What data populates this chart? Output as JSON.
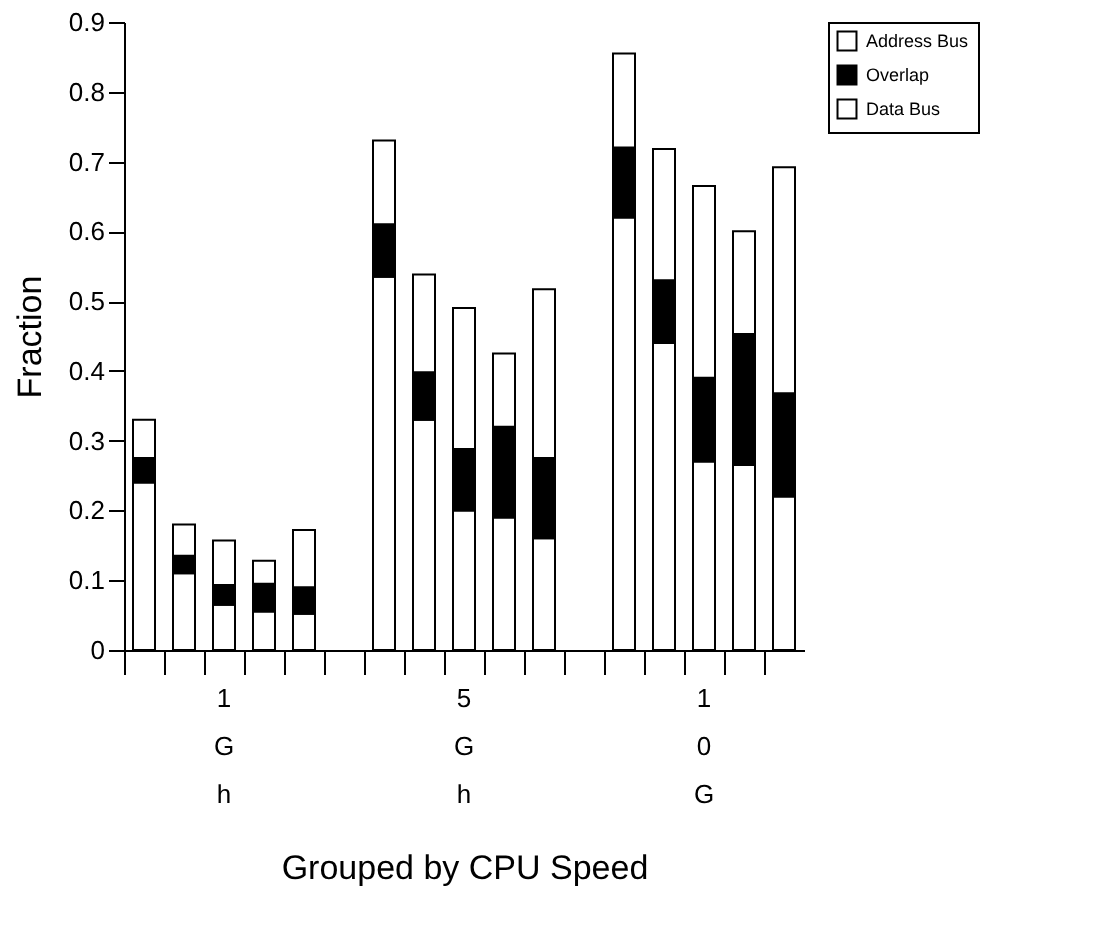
{
  "chart_data": {
    "type": "bar",
    "stacked": true,
    "xlabel": "Grouped by CPU Speed",
    "ylabel": "Fraction",
    "categories": [
      null,
      null,
      "1\nG\nh",
      null,
      null,
      null,
      null,
      null,
      "5\nG\nh",
      null,
      null,
      null,
      null,
      null,
      "1\n0\nG",
      null,
      null
    ],
    "series": [
      {
        "name": "Data Bus",
        "color": "#ffffff",
        "values": [
          0.24,
          0.11,
          0.065,
          0.055,
          0.052,
          null,
          0.535,
          0.33,
          0.2,
          0.19,
          0.16,
          null,
          0.62,
          0.44,
          0.27,
          0.265,
          0.22
        ]
      },
      {
        "name": "Overlap",
        "color": "#000000",
        "values": [
          0.035,
          0.025,
          0.028,
          0.04,
          0.038,
          null,
          0.075,
          0.068,
          0.088,
          0.13,
          0.115,
          null,
          0.1,
          0.09,
          0.12,
          0.188,
          0.148
        ]
      },
      {
        "name": "Address Bus",
        "color": "#ffffff",
        "values": [
          0.055,
          0.045,
          0.064,
          0.033,
          0.082,
          null,
          0.12,
          0.14,
          0.202,
          0.105,
          0.242,
          null,
          0.135,
          0.188,
          0.275,
          0.147,
          0.324
        ]
      }
    ],
    "ylim": [
      0,
      0.9
    ],
    "yticks": [
      0,
      0.1,
      0.2,
      0.3,
      0.4,
      0.5,
      0.6,
      0.7,
      0.8,
      0.9
    ],
    "grid": false,
    "legend": "right"
  }
}
